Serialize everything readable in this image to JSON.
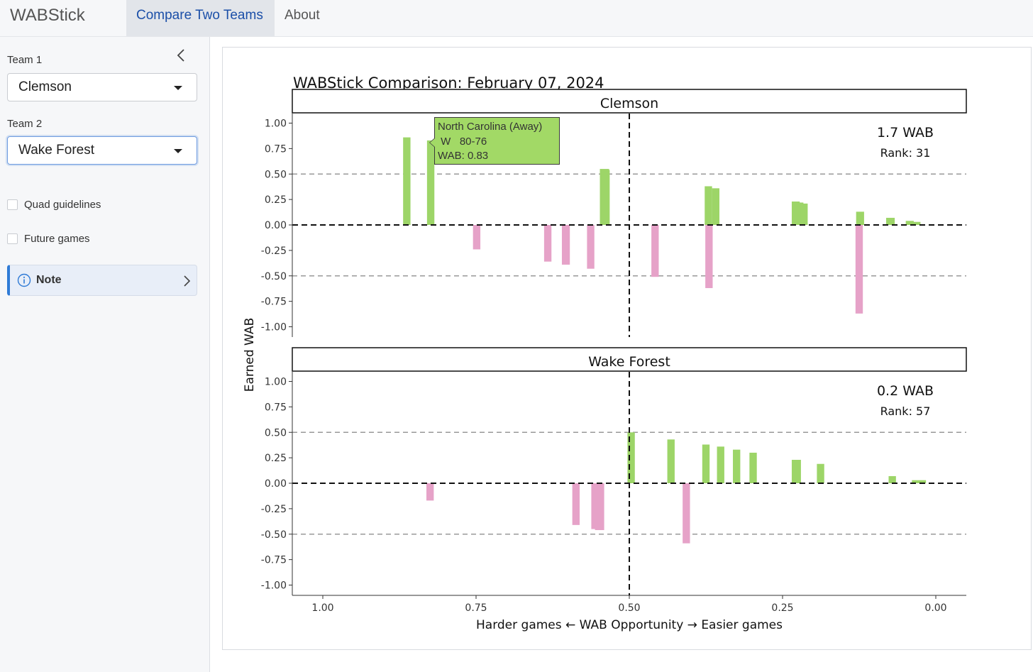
{
  "app": {
    "brand": "WABStick",
    "tabs": [
      {
        "label": "Compare Two Teams",
        "active": true
      },
      {
        "label": "About",
        "active": false
      }
    ]
  },
  "sidebar": {
    "team1": {
      "label": "Team 1",
      "value": "Clemson"
    },
    "team2": {
      "label": "Team 2",
      "value": "Wake Forest"
    },
    "checkboxes": [
      {
        "label": "Quad guidelines",
        "checked": false
      },
      {
        "label": "Future games",
        "checked": false
      }
    ],
    "note": {
      "label": "Note"
    }
  },
  "tooltip": {
    "line1": "North Carolina (Away)",
    "line2": " W   80-76",
    "line3": "WAB: 0.83"
  },
  "colors": {
    "win": "#9dd568",
    "loss": "#e6a2c8",
    "zero_line": "#111111",
    "guide_line": "#999999",
    "accent": "#1b4fa8"
  },
  "chart_data": {
    "type": "bar",
    "title": "WABStick Comparison: February 07, 2024",
    "xlabel": "Harder games ← WAB Opportunity → Easier games",
    "ylabel": "Earned WAB",
    "xlim": [
      1.0,
      0.0
    ],
    "x_reversed": true,
    "x_ticks": [
      "1.00",
      "0.75",
      "0.50",
      "0.25",
      "0.00"
    ],
    "x_tick_values": [
      1.0,
      0.75,
      0.5,
      0.25,
      0.0
    ],
    "ylim": [
      -1.0,
      1.0
    ],
    "y_ticks": [
      "1.00",
      "0.75",
      "0.50",
      "0.25",
      "0.00",
      "-0.25",
      "-0.50",
      "-0.75",
      "-1.00"
    ],
    "y_tick_values": [
      1.0,
      0.75,
      0.5,
      0.25,
      0.0,
      -0.25,
      -0.5,
      -0.75,
      -1.0
    ],
    "dashed_guides": [
      0.5,
      -0.5
    ],
    "vertical_guide": 0.5,
    "panels": [
      {
        "team": "Clemson",
        "wab_text": "1.7 WAB",
        "rank_text": "Rank: 31",
        "bars": [
          {
            "x0": 0.869,
            "x1": 0.857,
            "y": 0.86
          },
          {
            "x0": 0.83,
            "x1": 0.818,
            "y": 0.83
          },
          {
            "x0": 0.755,
            "x1": 0.743,
            "y": -0.24
          },
          {
            "x0": 0.639,
            "x1": 0.627,
            "y": -0.36
          },
          {
            "x0": 0.61,
            "x1": 0.597,
            "y": -0.39
          },
          {
            "x0": 0.569,
            "x1": 0.557,
            "y": -0.43
          },
          {
            "x0": 0.548,
            "x1": 0.533,
            "y": 0.55
          },
          {
            "x0": 0.545,
            "x1": 0.532,
            "y": 0.54
          },
          {
            "x0": 0.464,
            "x1": 0.452,
            "y": -0.51
          },
          {
            "x0": 0.377,
            "x1": 0.365,
            "y": 0.38
          },
          {
            "x0": 0.365,
            "x1": 0.353,
            "y": 0.36
          },
          {
            "x0": 0.376,
            "x1": 0.364,
            "y": -0.62
          },
          {
            "x0": 0.235,
            "x1": 0.222,
            "y": 0.23
          },
          {
            "x0": 0.228,
            "x1": 0.216,
            "y": 0.22
          },
          {
            "x0": 0.221,
            "x1": 0.209,
            "y": 0.21
          },
          {
            "x0": 0.131,
            "x1": 0.119,
            "y": -0.87
          },
          {
            "x0": 0.13,
            "x1": 0.117,
            "y": 0.13
          },
          {
            "x0": 0.081,
            "x1": 0.067,
            "y": 0.07
          },
          {
            "x0": 0.049,
            "x1": 0.036,
            "y": 0.04
          },
          {
            "x0": 0.038,
            "x1": 0.025,
            "y": 0.03
          }
        ]
      },
      {
        "team": "Wake Forest",
        "wab_text": "0.2 WAB",
        "rank_text": "Rank: 57",
        "bars": [
          {
            "x0": 0.831,
            "x1": 0.819,
            "y": -0.17
          },
          {
            "x0": 0.593,
            "x1": 0.581,
            "y": -0.41
          },
          {
            "x0": 0.562,
            "x1": 0.547,
            "y": -0.45
          },
          {
            "x0": 0.556,
            "x1": 0.541,
            "y": -0.46
          },
          {
            "x0": 0.503,
            "x1": 0.491,
            "y": 0.5
          },
          {
            "x0": 0.438,
            "x1": 0.426,
            "y": 0.43
          },
          {
            "x0": 0.381,
            "x1": 0.369,
            "y": 0.38
          },
          {
            "x0": 0.357,
            "x1": 0.345,
            "y": 0.36
          },
          {
            "x0": 0.331,
            "x1": 0.319,
            "y": 0.33
          },
          {
            "x0": 0.304,
            "x1": 0.292,
            "y": 0.3
          },
          {
            "x0": 0.413,
            "x1": 0.401,
            "y": -0.59
          },
          {
            "x0": 0.235,
            "x1": 0.22,
            "y": 0.23
          },
          {
            "x0": 0.194,
            "x1": 0.182,
            "y": 0.19
          },
          {
            "x0": 0.077,
            "x1": 0.065,
            "y": 0.07
          },
          {
            "x0": 0.039,
            "x1": 0.016,
            "y": 0.03
          }
        ]
      }
    ]
  }
}
